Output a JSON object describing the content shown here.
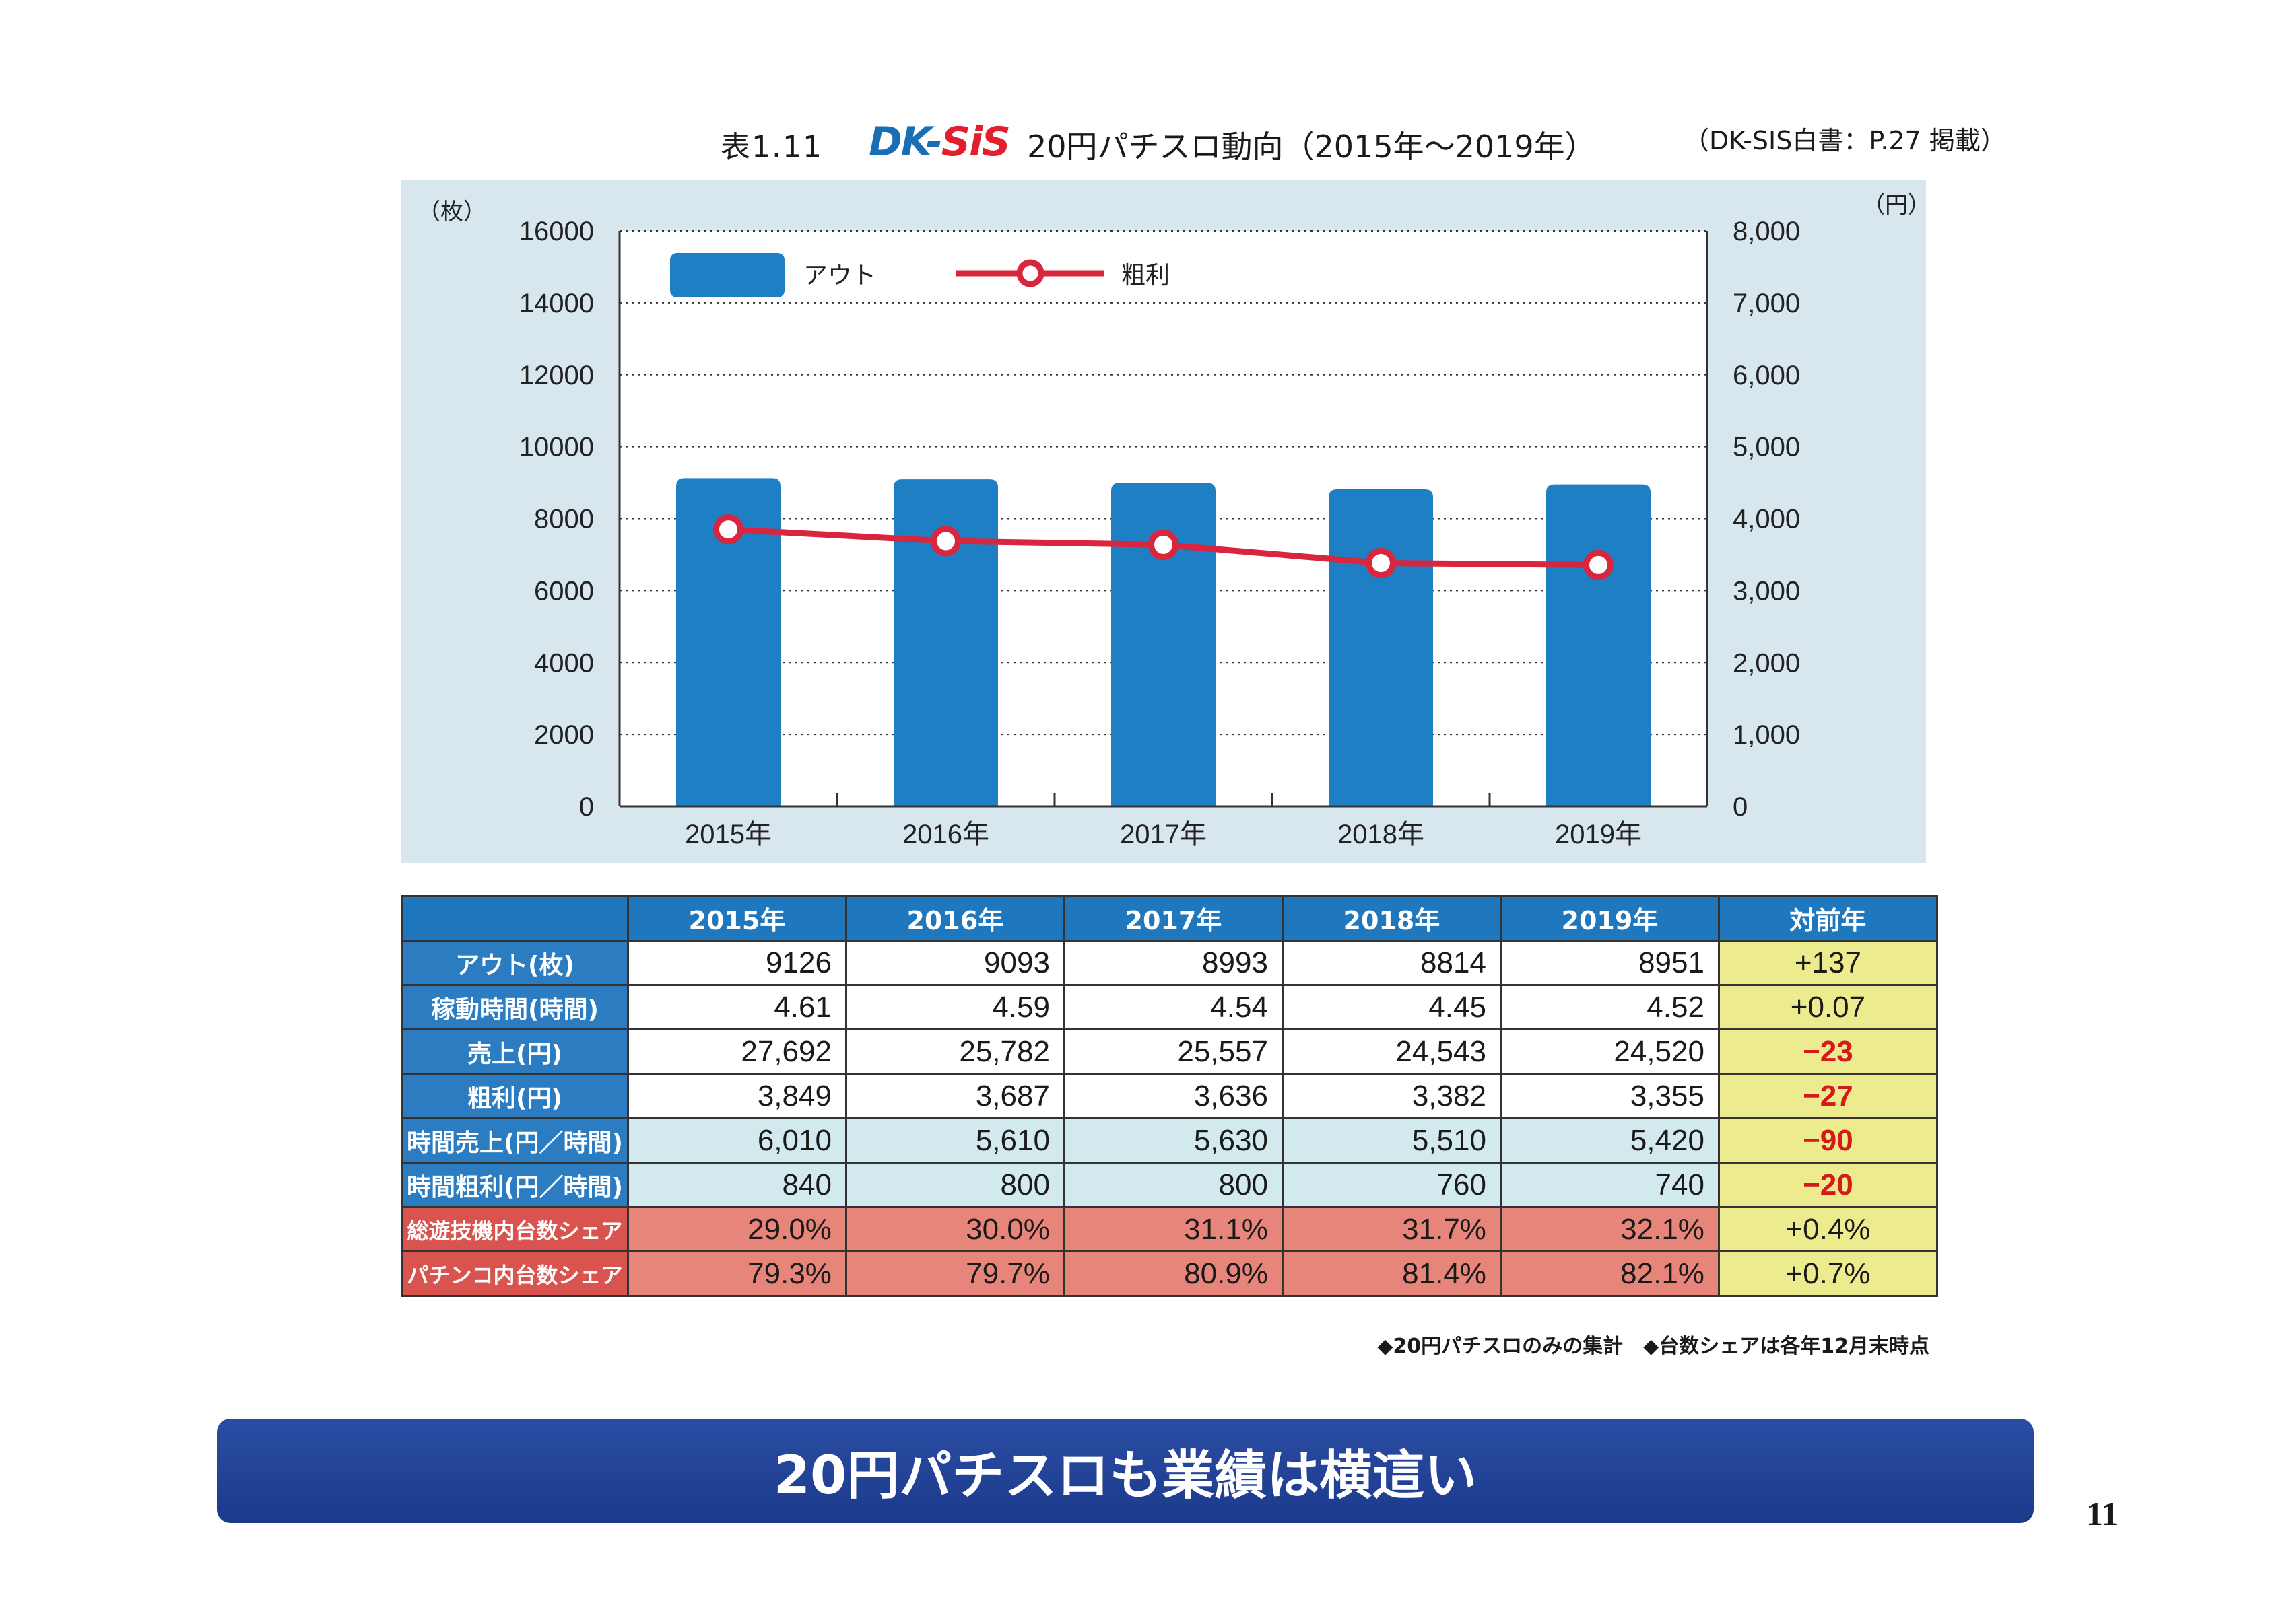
{
  "header": {
    "table_label": "表1.11",
    "logo_main": "DK-",
    "logo_accent": "SiS",
    "title": "20円パチスロ動向（2015年～2019年）",
    "source": "（DK-SIS白書：P.27 掲載）"
  },
  "chart_data": {
    "type": "bar",
    "categories": [
      "2015年",
      "2016年",
      "2017年",
      "2018年",
      "2019年"
    ],
    "series": [
      {
        "name": "アウト",
        "type": "bar",
        "axis": "left",
        "values": [
          9126,
          9093,
          8993,
          8814,
          8951
        ]
      },
      {
        "name": "粗利",
        "type": "line",
        "axis": "right",
        "values": [
          3849,
          3687,
          3636,
          3382,
          3355
        ]
      }
    ],
    "y_left": {
      "unit": "（枚）",
      "ylim": [
        0,
        16000
      ],
      "ticks": [
        "0",
        "2000",
        "4000",
        "6000",
        "8000",
        "10000",
        "12000",
        "14000",
        "16000"
      ]
    },
    "y_right": {
      "unit": "（円）",
      "ylim": [
        0,
        8000
      ],
      "ticks": [
        "0",
        "1,000",
        "2,000",
        "3,000",
        "4,000",
        "5,000",
        "6,000",
        "7,000",
        "8,000"
      ]
    },
    "grid": true,
    "legend": "top-left",
    "colors": {
      "bar": "#1f7fc4",
      "line": "#d7263d",
      "panel": "#d8e6ee"
    }
  },
  "table": {
    "header": [
      "2015年",
      "2016年",
      "2017年",
      "2018年",
      "2019年",
      "対前年"
    ],
    "rows": [
      {
        "label": "アウト(枚)",
        "values": [
          "9126",
          "9093",
          "8993",
          "8814",
          "8951"
        ],
        "diff": "+137"
      },
      {
        "label": "稼動時間(時間)",
        "values": [
          "4.61",
          "4.59",
          "4.54",
          "4.45",
          "4.52"
        ],
        "diff": "+0.07"
      },
      {
        "label": "売上(円)",
        "values": [
          "27,692",
          "25,782",
          "25,557",
          "24,543",
          "24,520"
        ],
        "diff": "−23"
      },
      {
        "label": "粗利(円)",
        "values": [
          "3,849",
          "3,687",
          "3,636",
          "3,382",
          "3,355"
        ],
        "diff": "−27"
      },
      {
        "label": "時間売上(円／時間)",
        "values": [
          "6,010",
          "5,610",
          "5,630",
          "5,510",
          "5,420"
        ],
        "diff": "−90"
      },
      {
        "label": "時間粗利(円／時間)",
        "values": [
          "840",
          "800",
          "800",
          "760",
          "740"
        ],
        "diff": "−20"
      },
      {
        "label": "総遊技機内台数シェア",
        "values": [
          "29.0%",
          "30.0%",
          "31.1%",
          "31.7%",
          "32.1%"
        ],
        "diff": "+0.4%"
      },
      {
        "label": "パチンコ内台数シェア",
        "values": [
          "79.3%",
          "79.7%",
          "80.9%",
          "81.4%",
          "82.1%"
        ],
        "diff": "+0.7%"
      }
    ]
  },
  "note": "◆20円パチスロのみの集計　◆台数シェアは各年12月末時点",
  "banner": "20円パチスロも業績は横這い",
  "page_number": "11"
}
